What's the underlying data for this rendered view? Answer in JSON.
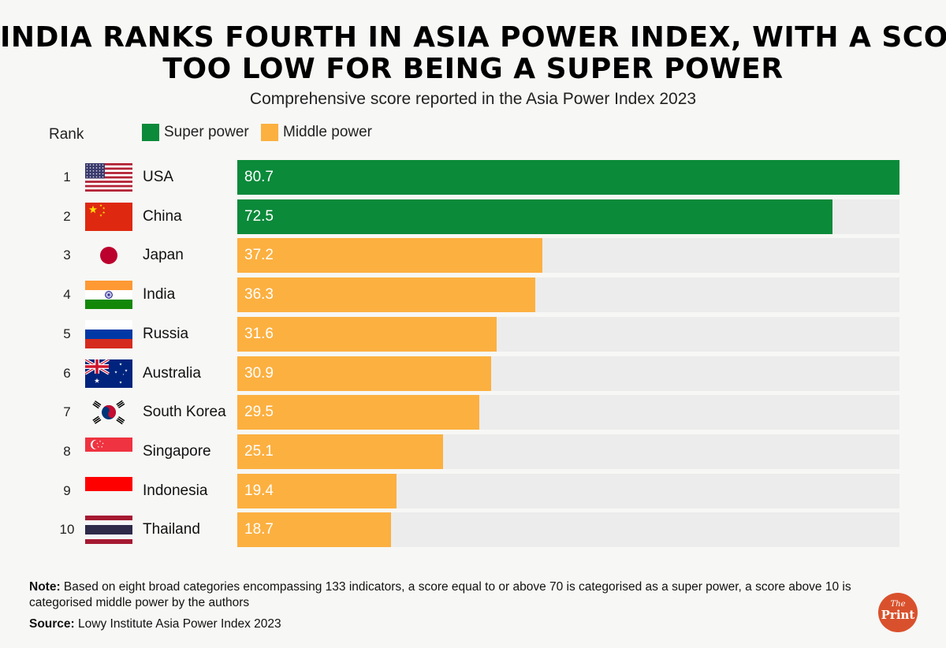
{
  "title_line1": "INDIA RANKS FOURTH IN ASIA POWER INDEX, WITH A SCORE",
  "title_line2": "TOO LOW FOR BEING A SUPER POWER",
  "subtitle": "Comprehensive score reported in the Asia Power Index 2023",
  "rank_label": "Rank",
  "legend": [
    {
      "label": "Super power",
      "color": "#0b8a3a"
    },
    {
      "label": "Middle power",
      "color": "#fcb040"
    }
  ],
  "note_label": "Note:",
  "note_text": "Based on eight broad categories encompassing 133 indicators, a score equal to or above 70 is categorised as a super power, a score above 10 is categorised middle power by the authors",
  "source_label": "Source:",
  "source_text": "Lowy Institute Asia Power Index 2023",
  "logo": {
    "line1": "The",
    "line2": "Print"
  },
  "chart_data": {
    "type": "bar",
    "orientation": "horizontal",
    "title": "INDIA RANKS FOURTH IN ASIA POWER INDEX, WITH A SCORE TOO LOW FOR BEING A SUPER POWER",
    "subtitle": "Comprehensive score reported in the Asia Power Index 2023",
    "xlim": [
      0,
      80.7
    ],
    "legend_position": "top-left",
    "rows": [
      {
        "rank": "1",
        "country": "USA",
        "value": 80.7,
        "label": "80.7",
        "category": "Super power",
        "flag": "usa-flag"
      },
      {
        "rank": "2",
        "country": "China",
        "value": 72.5,
        "label": "72.5",
        "category": "Super power",
        "flag": "china-flag"
      },
      {
        "rank": "3",
        "country": "Japan",
        "value": 37.2,
        "label": "37.2",
        "category": "Middle power",
        "flag": "japan-flag"
      },
      {
        "rank": "4",
        "country": "India",
        "value": 36.3,
        "label": "36.3",
        "category": "Middle power",
        "flag": "india-flag"
      },
      {
        "rank": "5",
        "country": "Russia",
        "value": 31.6,
        "label": "31.6",
        "category": "Middle power",
        "flag": "russia-flag"
      },
      {
        "rank": "6",
        "country": "Australia",
        "value": 30.9,
        "label": "30.9",
        "category": "Middle power",
        "flag": "australia-flag"
      },
      {
        "rank": "7",
        "country": "South Korea",
        "value": 29.5,
        "label": "29.5",
        "category": "Middle power",
        "flag": "south-korea-flag"
      },
      {
        "rank": "8",
        "country": "Singapore",
        "value": 25.1,
        "label": "25.1",
        "category": "Middle power",
        "flag": "singapore-flag"
      },
      {
        "rank": "9",
        "country": "Indonesia",
        "value": 19.4,
        "label": "19.4",
        "category": "Middle power",
        "flag": "indonesia-flag"
      },
      {
        "rank": "10",
        "country": "Thailand",
        "value": 18.7,
        "label": "18.7",
        "category": "Middle power",
        "flag": "thailand-flag"
      }
    ]
  }
}
